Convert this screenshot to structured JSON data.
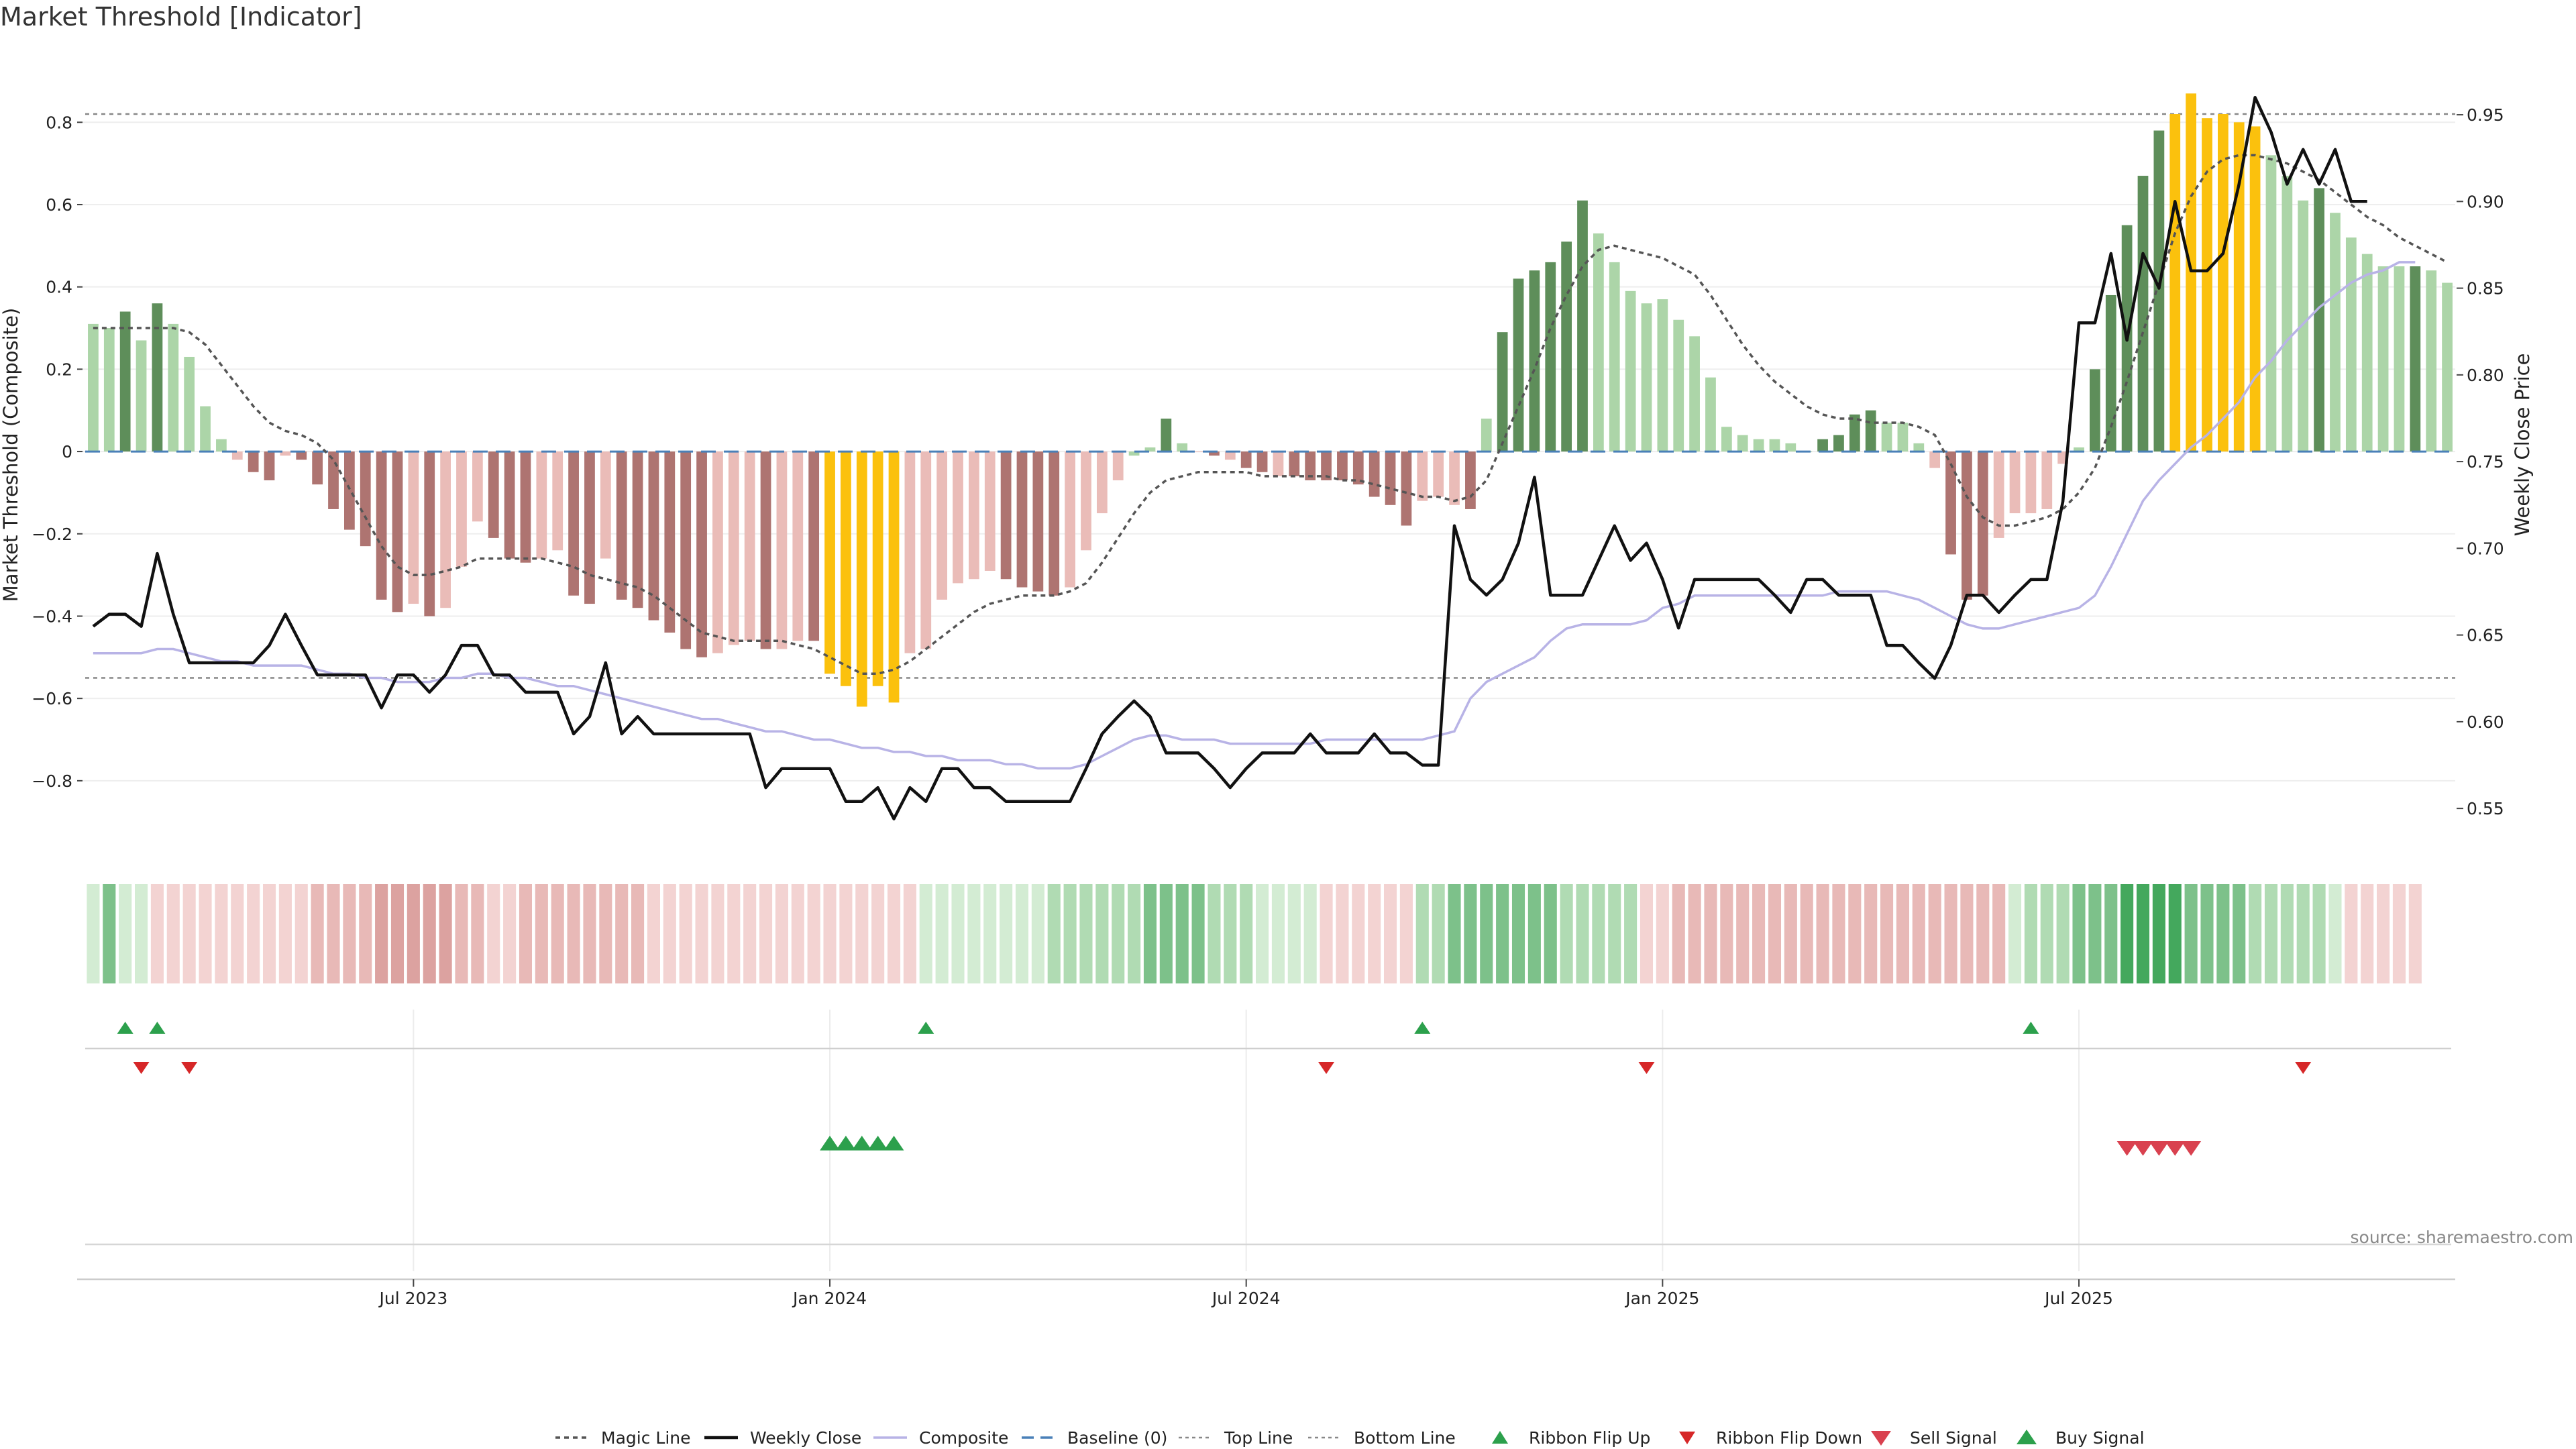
{
  "chart_data": {
    "type": "bar",
    "title": "Market Threshold [Indicator]",
    "ylabel": "Market Threshold (Composite)",
    "y2label": "Weekly Close Price",
    "ylim": [
      -0.96,
      0.97
    ],
    "y2lim": [
      0.528,
      0.986
    ],
    "yticks": [
      {
        "v": 0.8,
        "label": "0.8"
      },
      {
        "v": 0.6,
        "label": "0.6"
      },
      {
        "v": 0.4,
        "label": "0.4"
      },
      {
        "v": 0.2,
        "label": "0.2"
      },
      {
        "v": 0,
        "label": "0"
      },
      {
        "v": -0.2,
        "label": "−0.2"
      },
      {
        "v": -0.4,
        "label": "−0.4"
      },
      {
        "v": -0.6,
        "label": "−0.6"
      },
      {
        "v": -0.8,
        "label": "−0.8"
      }
    ],
    "y2ticks": [
      {
        "v": 0.95,
        "label": "0.95"
      },
      {
        "v": 0.9,
        "label": "0.90"
      },
      {
        "v": 0.85,
        "label": "0.85"
      },
      {
        "v": 0.8,
        "label": "0.80"
      },
      {
        "v": 0.75,
        "label": "0.75"
      },
      {
        "v": 0.7,
        "label": "0.70"
      },
      {
        "v": 0.65,
        "label": "0.65"
      },
      {
        "v": 0.6,
        "label": "0.60"
      },
      {
        "v": 0.55,
        "label": "0.55"
      }
    ],
    "xticks": [
      {
        "i": 20,
        "label": "Jul 2023"
      },
      {
        "i": 46,
        "label": "Jan 2024"
      },
      {
        "i": 72,
        "label": "Jul 2024"
      },
      {
        "i": 98,
        "label": "Jan 2025"
      },
      {
        "i": 124,
        "label": "Jul 2025"
      }
    ],
    "top_line": 0.82,
    "bottom_line": -0.55,
    "composite": [
      0.31,
      0.3,
      0.34,
      0.27,
      0.36,
      0.31,
      0.23,
      0.11,
      0.03,
      -0.02,
      -0.05,
      -0.07,
      -0.01,
      -0.02,
      -0.08,
      -0.14,
      -0.19,
      -0.23,
      -0.36,
      -0.39,
      -0.37,
      -0.4,
      -0.38,
      -0.28,
      -0.17,
      -0.21,
      -0.26,
      -0.27,
      -0.26,
      -0.24,
      -0.35,
      -0.37,
      -0.26,
      -0.36,
      -0.38,
      -0.41,
      -0.44,
      -0.48,
      -0.5,
      -0.49,
      -0.47,
      -0.46,
      -0.48,
      -0.48,
      -0.46,
      -0.46,
      -0.54,
      -0.57,
      -0.62,
      -0.57,
      -0.61,
      -0.49,
      -0.48,
      -0.36,
      -0.32,
      -0.31,
      -0.29,
      -0.31,
      -0.33,
      -0.34,
      -0.35,
      -0.33,
      -0.24,
      -0.15,
      -0.07,
      -0.01,
      0.01,
      0.08,
      0.02,
      0,
      -0.01,
      -0.02,
      -0.04,
      -0.05,
      -0.06,
      -0.06,
      -0.07,
      -0.07,
      -0.07,
      -0.08,
      -0.11,
      -0.13,
      -0.18,
      -0.12,
      -0.11,
      -0.13,
      -0.14,
      0.08,
      0.29,
      0.42,
      0.44,
      0.46,
      0.51,
      0.61,
      0.53,
      0.46,
      0.39,
      0.36,
      0.37,
      0.32,
      0.28,
      0.18,
      0.06,
      0.04,
      0.03,
      0.03,
      0.02,
      0.0,
      0.03,
      0.04,
      0.09,
      0.1,
      0.07,
      0.07,
      0.02,
      -0.04,
      -0.25,
      -0.36,
      -0.35,
      -0.21,
      -0.15,
      -0.15,
      -0.14,
      -0.03,
      0.01,
      0.2,
      0.38,
      0.55,
      0.67,
      0.78,
      0.82,
      0.87,
      0.81,
      0.82,
      0.8,
      0.79,
      0.72,
      0.67,
      0.61,
      0.64,
      0.58,
      0.52,
      0.48,
      0.45,
      0.45,
      0.45,
      0.44,
      0.41
    ],
    "bar_states": [
      "up-weak",
      "up-weak",
      "up-strong",
      "up-weak",
      "up-strong",
      "up-weak",
      "up-weak",
      "up-weak",
      "up-weak",
      "down-weak",
      "down-strong",
      "down-strong",
      "down-weak",
      "down-strong",
      "down-strong",
      "down-strong",
      "down-strong",
      "down-strong",
      "down-strong",
      "down-strong",
      "down-weak",
      "down-strong",
      "down-weak",
      "down-weak",
      "down-weak",
      "down-strong",
      "down-strong",
      "down-strong",
      "down-weak",
      "down-weak",
      "down-strong",
      "down-strong",
      "down-weak",
      "down-strong",
      "down-strong",
      "down-strong",
      "down-strong",
      "down-strong",
      "down-strong",
      "down-weak",
      "down-weak",
      "down-weak",
      "down-strong",
      "down-weak",
      "down-weak",
      "down-strong",
      "extreme",
      "extreme",
      "extreme",
      "extreme",
      "extreme",
      "down-weak",
      "down-weak",
      "down-weak",
      "down-weak",
      "down-weak",
      "down-weak",
      "down-strong",
      "down-strong",
      "down-strong",
      "down-strong",
      "down-weak",
      "down-weak",
      "down-weak",
      "down-weak",
      "up-weak",
      "up-weak",
      "up-strong",
      "up-weak",
      "down-weak",
      "down-strong",
      "down-weak",
      "down-strong",
      "down-strong",
      "down-weak",
      "down-strong",
      "down-strong",
      "down-strong",
      "down-strong",
      "down-strong",
      "down-strong",
      "down-strong",
      "down-strong",
      "down-weak",
      "down-weak",
      "down-weak",
      "down-strong",
      "up-weak",
      "up-strong",
      "up-strong",
      "up-strong",
      "up-strong",
      "up-strong",
      "up-strong",
      "up-weak",
      "up-weak",
      "up-weak",
      "up-weak",
      "up-weak",
      "up-weak",
      "up-weak",
      "up-weak",
      "up-weak",
      "up-weak",
      "up-weak",
      "up-weak",
      "up-weak",
      "up-weak",
      "up-strong",
      "up-strong",
      "up-strong",
      "up-strong",
      "up-weak",
      "up-weak",
      "up-weak",
      "down-weak",
      "down-strong",
      "down-strong",
      "down-strong",
      "down-weak",
      "down-weak",
      "down-weak",
      "down-weak",
      "down-weak",
      "up-weak",
      "up-strong",
      "up-strong",
      "up-strong",
      "up-strong",
      "up-strong",
      "extreme",
      "extreme",
      "extreme",
      "extreme",
      "extreme",
      "extreme",
      "up-weak",
      "up-weak",
      "up-weak",
      "up-strong",
      "up-weak",
      "up-weak",
      "up-weak",
      "up-weak",
      "up-weak",
      "up-strong",
      "up-weak",
      "up-weak"
    ],
    "magic_line": [
      0.3,
      0.3,
      0.3,
      0.3,
      0.3,
      0.3,
      0.29,
      0.26,
      0.21,
      0.16,
      0.11,
      0.07,
      0.05,
      0.04,
      0.02,
      -0.02,
      -0.09,
      -0.16,
      -0.23,
      -0.28,
      -0.3,
      -0.3,
      -0.29,
      -0.28,
      -0.26,
      -0.26,
      -0.26,
      -0.26,
      -0.26,
      -0.27,
      -0.28,
      -0.3,
      -0.31,
      -0.32,
      -0.33,
      -0.35,
      -0.38,
      -0.41,
      -0.44,
      -0.45,
      -0.46,
      -0.46,
      -0.46,
      -0.46,
      -0.47,
      -0.48,
      -0.5,
      -0.52,
      -0.54,
      -0.54,
      -0.53,
      -0.51,
      -0.48,
      -0.45,
      -0.42,
      -0.39,
      -0.37,
      -0.36,
      -0.35,
      -0.35,
      -0.35,
      -0.34,
      -0.32,
      -0.27,
      -0.21,
      -0.15,
      -0.1,
      -0.07,
      -0.06,
      -0.05,
      -0.05,
      -0.05,
      -0.05,
      -0.06,
      -0.06,
      -0.06,
      -0.06,
      -0.06,
      -0.07,
      -0.07,
      -0.08,
      -0.09,
      -0.1,
      -0.11,
      -0.11,
      -0.12,
      -0.11,
      -0.07,
      0.02,
      0.11,
      0.2,
      0.3,
      0.38,
      0.45,
      0.49,
      0.5,
      0.49,
      0.48,
      0.47,
      0.45,
      0.43,
      0.38,
      0.32,
      0.26,
      0.21,
      0.17,
      0.14,
      0.11,
      0.09,
      0.08,
      0.08,
      0.07,
      0.07,
      0.07,
      0.06,
      0.04,
      -0.03,
      -0.11,
      -0.16,
      -0.18,
      -0.18,
      -0.17,
      -0.16,
      -0.14,
      -0.1,
      -0.04,
      0.06,
      0.17,
      0.29,
      0.41,
      0.53,
      0.62,
      0.68,
      0.71,
      0.72,
      0.72,
      0.71,
      0.7,
      0.68,
      0.66,
      0.63,
      0.6,
      0.57,
      0.55,
      0.52,
      0.5,
      0.48,
      0.46
    ],
    "weekly_close": [
      0.655,
      0.662,
      0.662,
      0.655,
      0.697,
      0.662,
      0.634,
      0.634,
      0.634,
      0.634,
      0.634,
      0.644,
      0.662,
      0.644,
      0.627,
      0.627,
      0.627,
      0.627,
      0.608,
      0.627,
      0.627,
      0.617,
      0.627,
      0.644,
      0.644,
      0.627,
      0.627,
      0.617,
      0.617,
      0.617,
      0.593,
      0.603,
      0.634,
      0.593,
      0.603,
      0.593,
      0.593,
      0.593,
      0.593,
      0.593,
      0.593,
      0.593,
      0.562,
      0.573,
      0.573,
      0.573,
      0.573,
      0.554,
      0.554,
      0.562,
      0.544,
      0.562,
      0.554,
      0.573,
      0.573,
      0.562,
      0.562,
      0.554,
      0.554,
      0.554,
      0.554,
      0.554,
      0.573,
      0.593,
      0.603,
      0.612,
      0.603,
      0.582,
      0.582,
      0.582,
      0.573,
      0.562,
      0.573,
      0.582,
      0.582,
      0.582,
      0.593,
      0.582,
      0.582,
      0.582,
      0.593,
      0.582,
      0.582,
      0.575,
      0.575,
      0.713,
      0.682,
      0.673,
      0.682,
      0.703,
      0.741,
      0.673,
      0.673,
      0.673,
      0.693,
      0.713,
      0.693,
      0.703,
      0.682,
      0.654,
      0.682,
      0.682,
      0.682,
      0.682,
      0.682,
      0.673,
      0.663,
      0.682,
      0.682,
      0.673,
      0.673,
      0.673,
      0.644,
      0.644,
      0.634,
      0.625,
      0.644,
      0.673,
      0.673,
      0.663,
      0.673,
      0.682,
      0.682,
      0.727,
      0.83,
      0.83,
      0.87,
      0.82,
      0.87,
      0.85,
      0.9,
      0.86,
      0.86,
      0.87,
      0.91,
      0.96,
      0.94,
      0.91,
      0.93,
      0.91,
      0.93,
      0.9,
      0.9
    ],
    "composite_line": [
      -0.49,
      -0.49,
      -0.49,
      -0.49,
      -0.48,
      -0.48,
      -0.49,
      -0.5,
      -0.51,
      -0.51,
      -0.52,
      -0.52,
      -0.52,
      -0.52,
      -0.53,
      -0.54,
      -0.54,
      -0.55,
      -0.55,
      -0.56,
      -0.56,
      -0.56,
      -0.55,
      -0.55,
      -0.54,
      -0.54,
      -0.55,
      -0.55,
      -0.56,
      -0.57,
      -0.57,
      -0.58,
      -0.59,
      -0.6,
      -0.61,
      -0.62,
      -0.63,
      -0.64,
      -0.65,
      -0.65,
      -0.66,
      -0.67,
      -0.68,
      -0.68,
      -0.69,
      -0.7,
      -0.7,
      -0.71,
      -0.72,
      -0.72,
      -0.73,
      -0.73,
      -0.74,
      -0.74,
      -0.75,
      -0.75,
      -0.75,
      -0.76,
      -0.76,
      -0.77,
      -0.77,
      -0.77,
      -0.76,
      -0.74,
      -0.72,
      -0.7,
      -0.69,
      -0.69,
      -0.7,
      -0.7,
      -0.7,
      -0.71,
      -0.71,
      -0.71,
      -0.71,
      -0.71,
      -0.71,
      -0.7,
      -0.7,
      -0.7,
      -0.7,
      -0.7,
      -0.7,
      -0.7,
      -0.69,
      -0.68,
      -0.6,
      -0.56,
      -0.54,
      -0.52,
      -0.5,
      -0.46,
      -0.43,
      -0.42,
      -0.42,
      -0.42,
      -0.42,
      -0.41,
      -0.38,
      -0.37,
      -0.35,
      -0.35,
      -0.35,
      -0.35,
      -0.35,
      -0.35,
      -0.35,
      -0.35,
      -0.35,
      -0.34,
      -0.34,
      -0.34,
      -0.34,
      -0.35,
      -0.36,
      -0.38,
      -0.4,
      -0.42,
      -0.43,
      -0.43,
      -0.42,
      -0.41,
      -0.4,
      -0.39,
      -0.38,
      -0.35,
      -0.28,
      -0.2,
      -0.12,
      -0.07,
      -0.03,
      0.01,
      0.04,
      0.08,
      0.12,
      0.18,
      0.22,
      0.27,
      0.31,
      0.35,
      0.38,
      0.41,
      0.43,
      0.44,
      0.46,
      0.46
    ],
    "ribbon": [
      "up-weak",
      "up-strong",
      "up-weak",
      "up-weak",
      "down-weak",
      "down-weak",
      "down-weak",
      "down-weak",
      "down-weak",
      "down-weak",
      "down-weak",
      "down-weak",
      "down-weak",
      "down-weak",
      "down-mid",
      "down-mid",
      "down-mid",
      "down-mid",
      "down-strong",
      "down-strong",
      "down-strong",
      "down-strong",
      "down-strong",
      "down-mid",
      "down-mid",
      "down-weak",
      "down-weak",
      "down-mid",
      "down-mid",
      "down-mid",
      "down-mid",
      "down-mid",
      "down-mid",
      "down-mid",
      "down-mid",
      "down-weak",
      "down-weak",
      "down-weak",
      "down-weak",
      "down-weak",
      "down-weak",
      "down-weak",
      "down-weak",
      "down-weak",
      "down-weak",
      "down-weak",
      "down-weak",
      "down-weak",
      "down-weak",
      "down-weak",
      "down-weak",
      "down-weak",
      "up-weak",
      "up-weak",
      "up-weak",
      "up-weak",
      "up-weak",
      "up-weak",
      "up-weak",
      "up-weak",
      "up-mid",
      "up-mid",
      "up-mid",
      "up-mid",
      "up-mid",
      "up-mid",
      "up-strong",
      "up-strong",
      "up-strong",
      "up-strong",
      "up-mid",
      "up-mid",
      "up-mid",
      "up-weak",
      "up-weak",
      "up-weak",
      "up-weak",
      "down-weak",
      "down-weak",
      "down-weak",
      "down-weak",
      "down-weak",
      "down-weak",
      "up-mid",
      "up-mid",
      "up-strong",
      "up-strong",
      "up-strong",
      "up-strong",
      "up-strong",
      "up-strong",
      "up-strong",
      "up-mid",
      "up-mid",
      "up-mid",
      "up-mid",
      "up-mid",
      "down-weak",
      "down-weak",
      "down-mid",
      "down-mid",
      "down-mid",
      "down-mid",
      "down-mid",
      "down-mid",
      "down-mid",
      "down-mid",
      "down-mid",
      "down-mid",
      "down-mid",
      "down-mid",
      "down-mid",
      "down-mid",
      "down-mid",
      "down-mid",
      "down-mid",
      "down-mid",
      "down-mid",
      "down-mid",
      "down-mid",
      "up-weak",
      "up-mid",
      "up-mid",
      "up-mid",
      "up-strong",
      "up-strong",
      "up-strong",
      "up-max",
      "up-max",
      "up-max",
      "up-max",
      "up-strong",
      "up-strong",
      "up-strong",
      "up-strong",
      "up-mid",
      "up-mid",
      "up-mid",
      "up-mid",
      "up-mid",
      "up-weak",
      "down-weak",
      "down-weak",
      "down-weak",
      "down-weak",
      "down-weak"
    ],
    "ribbon_flip_up": [
      2,
      4,
      52,
      83,
      121
    ],
    "ribbon_flip_down": [
      3,
      6,
      77,
      97,
      138
    ],
    "buy_signal": [
      46,
      47,
      48,
      49,
      50
    ],
    "sell_signal": [
      127,
      128,
      129,
      130,
      131
    ],
    "legend": [
      {
        "key": "magic",
        "label": "Magic Line"
      },
      {
        "key": "close",
        "label": "Weekly Close"
      },
      {
        "key": "composite",
        "label": "Composite"
      },
      {
        "key": "baseline",
        "label": "Baseline (0)"
      },
      {
        "key": "top",
        "label": "Top Line"
      },
      {
        "key": "bottom",
        "label": "Bottom Line"
      },
      {
        "key": "flipup",
        "label": "Ribbon Flip Up"
      },
      {
        "key": "flipdown",
        "label": "Ribbon Flip Down"
      },
      {
        "key": "sell",
        "label": "Sell Signal"
      },
      {
        "key": "buy",
        "label": "Buy Signal"
      }
    ],
    "legend_position": "bottom-center",
    "source": "source: sharemaestro.com",
    "colors": {
      "up_weak": "#acd5a8",
      "up_strong": "#5e8e5a",
      "down_weak": "#eabcb8",
      "down_strong": "#ae7471",
      "extreme": "#fbc10d",
      "magic": "#555555",
      "close": "#111111",
      "composite_line": "#b8b3e6",
      "baseline": "#4a80b8",
      "guide": "#888888",
      "flip_up": "#2ca04c",
      "flip_down": "#d62728",
      "sell": "#d9414f",
      "buy": "#2ca04c",
      "ribbon_up_weak": "#d3ecd3",
      "ribbon_up_mid": "#b0dbb3",
      "ribbon_up_strong": "#7dc18a",
      "ribbon_up_max": "#44a85d",
      "ribbon_down_weak": "#f3d3d2",
      "ribbon_down_mid": "#e8b9b7",
      "ribbon_down_strong": "#dca2a0"
    }
  }
}
